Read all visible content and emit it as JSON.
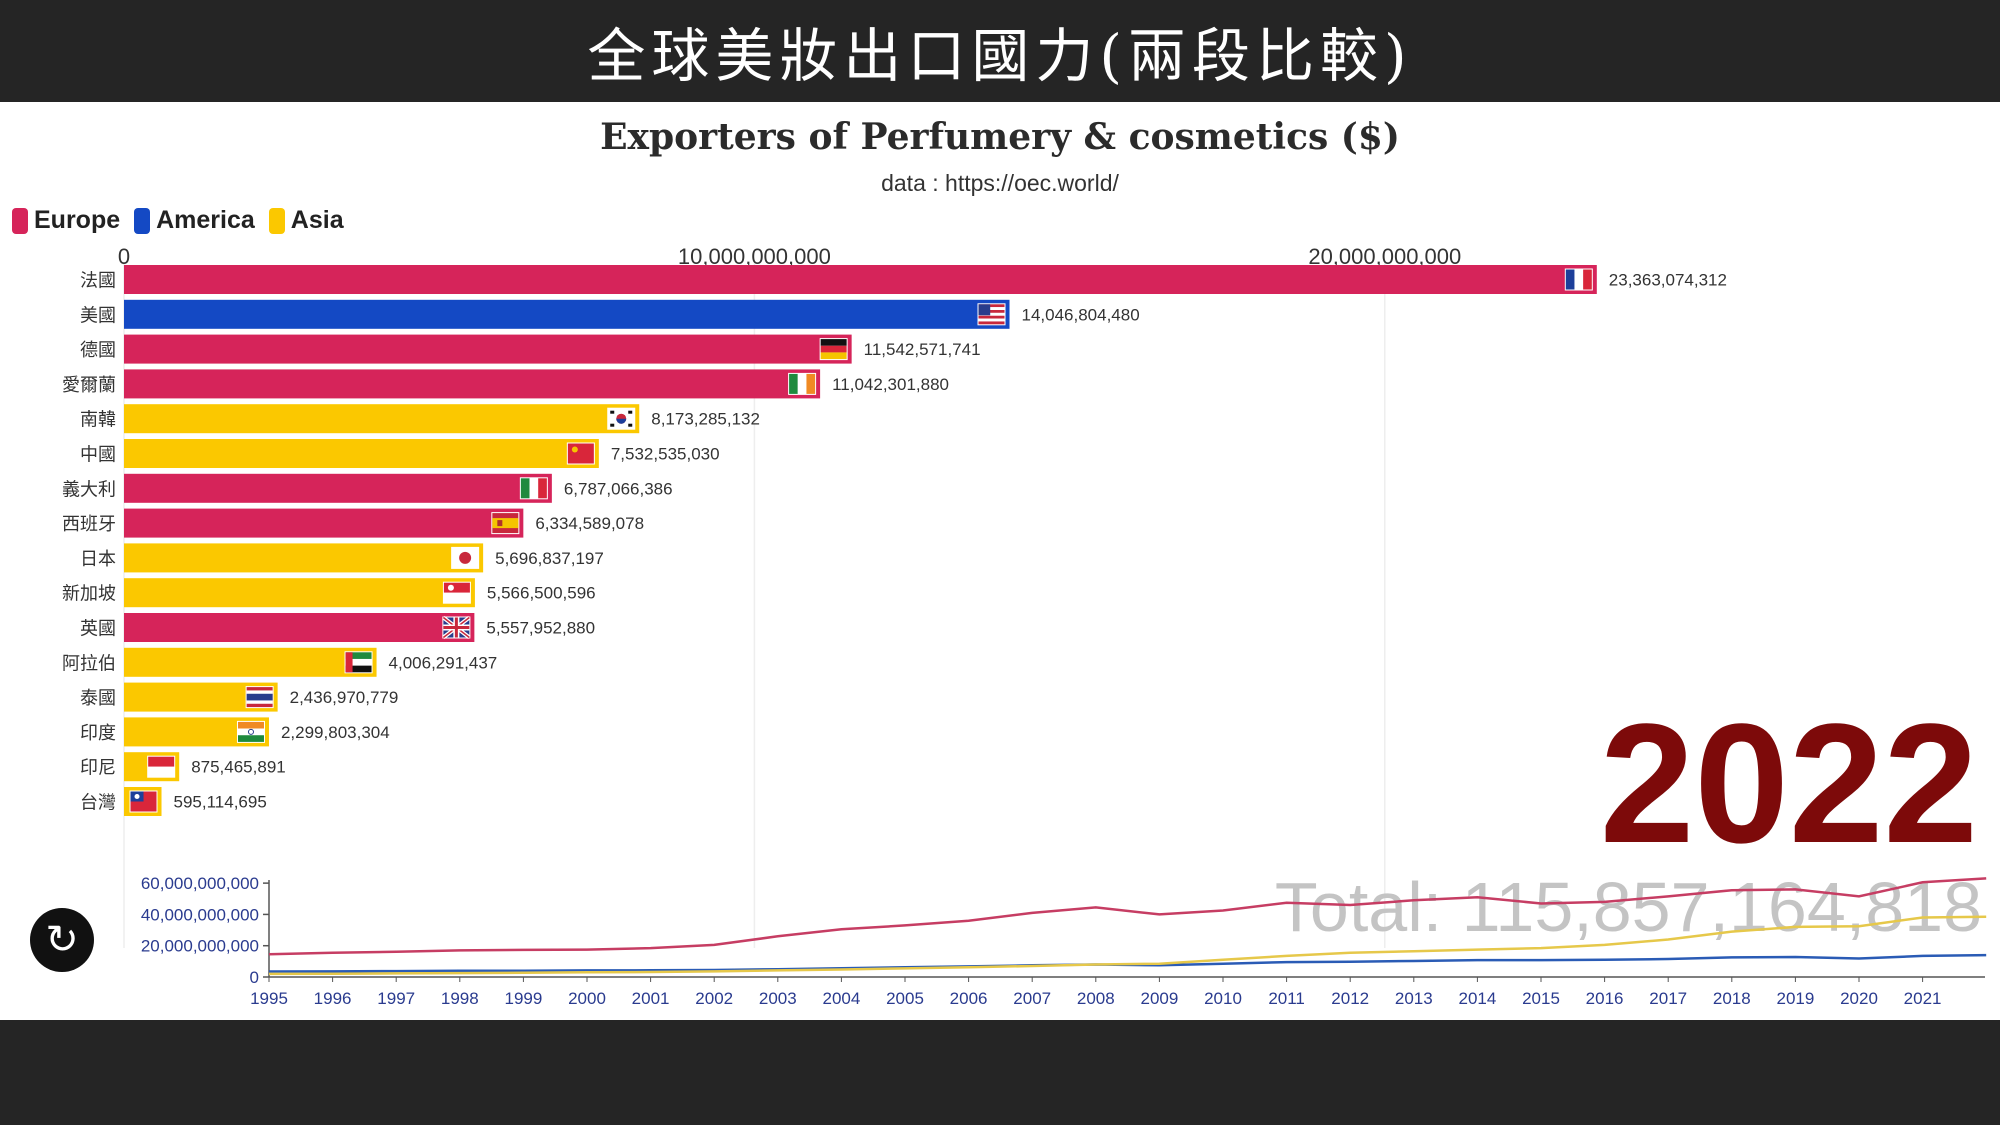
{
  "banner_title": "全球美妝出口國力(兩段比較)",
  "chart_data": [
    {
      "type": "bar",
      "title": "Exporters of Perfumery & cosmetics ($)",
      "subtitle": "data : https://oec.world/",
      "year_label": "2022",
      "total_label": "Total: 115,857,164,818",
      "legend": [
        {
          "label": "Europe",
          "color": "#d6245a"
        },
        {
          "label": "America",
          "color": "#1449c4"
        },
        {
          "label": "Asia",
          "color": "#fbc800"
        }
      ],
      "x_ticks": [
        {
          "value": 0,
          "label": "0"
        },
        {
          "value": 10000000000,
          "label": "10,000,000,000"
        },
        {
          "value": 20000000000,
          "label": "20,000,000,000"
        }
      ],
      "xlim": [
        0,
        25000000000
      ],
      "categories": [
        "法國",
        "美國",
        "德國",
        "愛爾蘭",
        "南韓",
        "中國",
        "義大利",
        "西班牙",
        "日本",
        "新加坡",
        "英國",
        "阿拉伯",
        "泰國",
        "印度",
        "印尼",
        "台灣"
      ],
      "values": [
        23363074312,
        14046804480,
        11542571741,
        11042301880,
        8173285132,
        7532535030,
        6787066386,
        6334589078,
        5696837197,
        5566500596,
        5557952880,
        4006291437,
        2436970779,
        2299803304,
        875465891,
        595114695
      ],
      "value_labels": [
        "23,363,074,312",
        "14,046,804,480",
        "11,542,571,741",
        "11,042,301,880",
        "8,173,285,132",
        "7,532,535,030",
        "6,787,066,386",
        "6,334,589,078",
        "5,696,837,197",
        "5,566,500,596",
        "5,557,952,880",
        "4,006,291,437",
        "2,436,970,779",
        "2,299,803,304",
        "875,465,891",
        "595,114,695"
      ],
      "regions": [
        "Europe",
        "America",
        "Europe",
        "Europe",
        "Asia",
        "Asia",
        "Europe",
        "Europe",
        "Asia",
        "Asia",
        "Europe",
        "Asia",
        "Asia",
        "Asia",
        "Asia",
        "Asia"
      ],
      "flags": [
        "fr",
        "us",
        "de",
        "ie",
        "kr",
        "cn",
        "it",
        "es",
        "jp",
        "sg",
        "gb",
        "ae",
        "th",
        "in",
        "id",
        "tw"
      ]
    },
    {
      "type": "line",
      "x": [
        1995,
        1996,
        1997,
        1998,
        1999,
        2000,
        2001,
        2002,
        2003,
        2004,
        2005,
        2006,
        2007,
        2008,
        2009,
        2010,
        2011,
        2012,
        2013,
        2014,
        2015,
        2016,
        2017,
        2018,
        2019,
        2020,
        2021,
        2022
      ],
      "x_tick_labels": [
        "1995",
        "1996",
        "1997",
        "1998",
        "1999",
        "2000",
        "2001",
        "2002",
        "2003",
        "2004",
        "2005",
        "2006",
        "2007",
        "2008",
        "2009",
        "2010",
        "2011",
        "2012",
        "2013",
        "2014",
        "2015",
        "2016",
        "2017",
        "2018",
        "2019",
        "2020",
        "2021"
      ],
      "y_ticks": [
        {
          "value": 0,
          "label": "0"
        },
        {
          "value": 20000000000,
          "label": "20,000,000,000"
        },
        {
          "value": 40000000000,
          "label": "40,000,000,000"
        },
        {
          "value": 60000000000,
          "label": "60,000,000,000"
        }
      ],
      "ylim": [
        0,
        62000000000
      ],
      "series": [
        {
          "region": "Europe",
          "color": "#c63d63",
          "values": [
            14500000000,
            15500000000,
            16200000000,
            17000000000,
            17300000000,
            17500000000,
            18500000000,
            20500000000,
            26000000000,
            30500000000,
            33000000000,
            36000000000,
            41000000000,
            44500000000,
            40000000000,
            42500000000,
            47500000000,
            46000000000,
            49000000000,
            51000000000,
            47000000000,
            48000000000,
            51500000000,
            55500000000,
            56000000000,
            51500000000,
            60500000000,
            63000000000
          ]
        },
        {
          "region": "America",
          "color": "#2a5bb5",
          "values": [
            3500000000,
            3600000000,
            3800000000,
            4000000000,
            4000000000,
            4200000000,
            4300000000,
            4500000000,
            5000000000,
            5600000000,
            6200000000,
            6800000000,
            7500000000,
            8000000000,
            7500000000,
            8500000000,
            9500000000,
            9800000000,
            10200000000,
            10800000000,
            10800000000,
            11000000000,
            11500000000,
            12500000000,
            12800000000,
            11800000000,
            13500000000,
            14000000000
          ]
        },
        {
          "region": "Asia",
          "color": "#e6c84a",
          "values": [
            2000000000,
            2100000000,
            2300000000,
            2500000000,
            2700000000,
            3000000000,
            3200000000,
            3600000000,
            4200000000,
            4800000000,
            5500000000,
            6200000000,
            7000000000,
            8000000000,
            8500000000,
            11000000000,
            13500000000,
            15500000000,
            16500000000,
            17500000000,
            18500000000,
            20500000000,
            24000000000,
            29000000000,
            32000000000,
            32500000000,
            38000000000,
            38500000000
          ]
        }
      ]
    }
  ],
  "replay_icon": "replay-icon"
}
